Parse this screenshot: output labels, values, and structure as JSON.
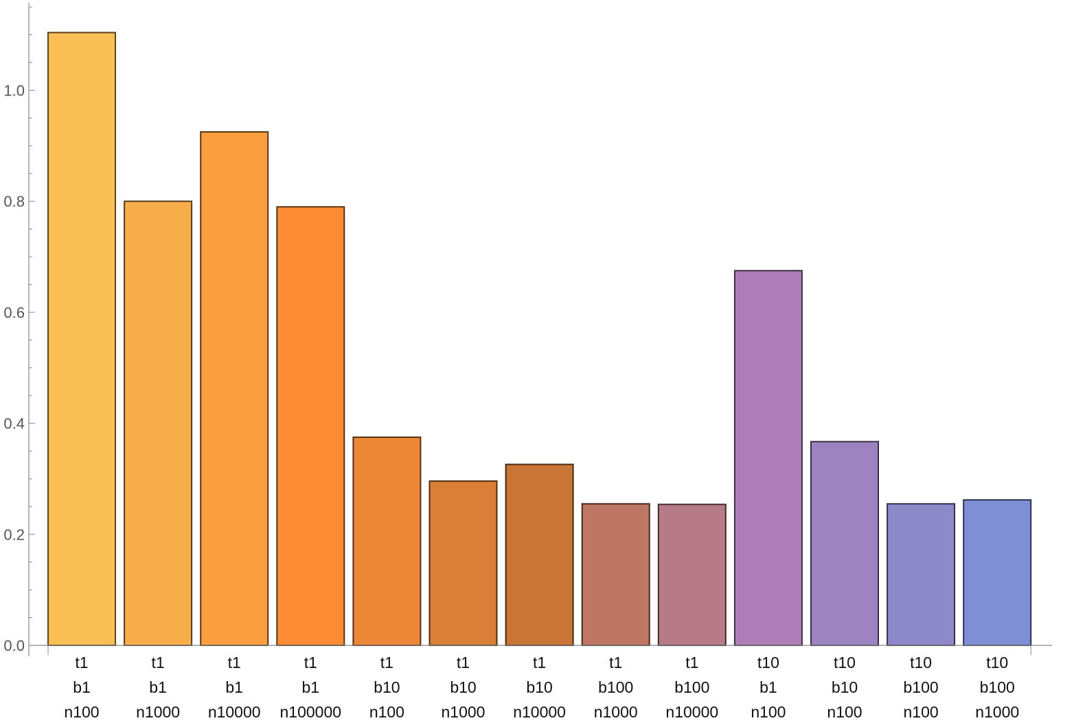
{
  "chart_data": {
    "type": "bar",
    "title": "",
    "xlabel": "",
    "ylabel": "",
    "ylim": [
      0,
      1.15
    ],
    "y_ticks_major": [
      "0.0",
      "0.2",
      "0.4",
      "0.6",
      "0.8",
      "1.0"
    ],
    "y_ticks_minor_step": 0.05,
    "grid": false,
    "categories": [
      [
        "t1",
        "b1",
        "n100"
      ],
      [
        "t1",
        "b1",
        "n1000"
      ],
      [
        "t1",
        "b1",
        "n10000"
      ],
      [
        "t1",
        "b1",
        "n100000"
      ],
      [
        "t1",
        "b10",
        "n100"
      ],
      [
        "t1",
        "b10",
        "n1000"
      ],
      [
        "t1",
        "b10",
        "n10000"
      ],
      [
        "t1",
        "b100",
        "n1000"
      ],
      [
        "t1",
        "b100",
        "n10000"
      ],
      [
        "t10",
        "b1",
        "n100"
      ],
      [
        "t10",
        "b10",
        "n100"
      ],
      [
        "t10",
        "b100",
        "n100"
      ],
      [
        "t10",
        "b100",
        "n1000"
      ]
    ],
    "values": [
      1.104,
      0.8,
      0.925,
      0.79,
      0.375,
      0.296,
      0.326,
      0.255,
      0.254,
      0.675,
      0.367,
      0.255,
      0.262
    ],
    "colors": [
      "#F9BF55",
      "#F9AE4C",
      "#FB9E40",
      "#FB8C33",
      "#EE8638",
      "#DA7F37",
      "#C87535",
      "#BE7762",
      "#B77B87",
      "#AE7EB9",
      "#9D84C1",
      "#8D88CA",
      "#7E8FD6"
    ]
  }
}
